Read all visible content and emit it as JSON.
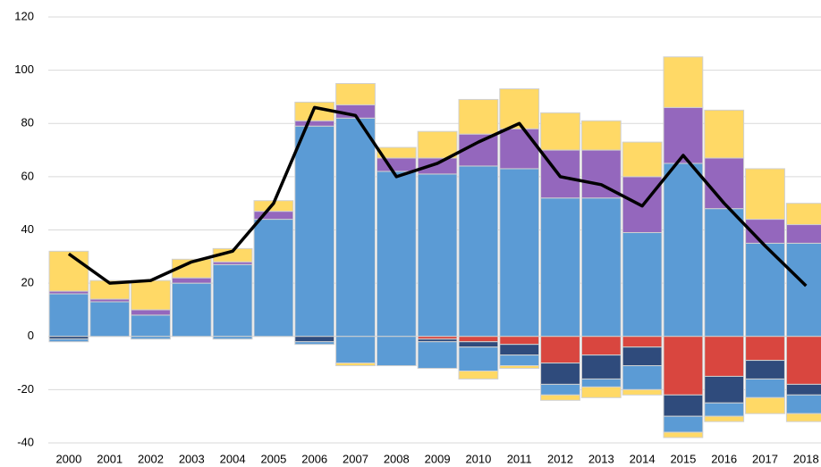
{
  "chart_data": {
    "type": "bar",
    "stacked": true,
    "categories": [
      "2000",
      "2001",
      "2002",
      "2003",
      "2004",
      "2005",
      "2006",
      "2007",
      "2008",
      "2009",
      "2010",
      "2011",
      "2012",
      "2013",
      "2014",
      "2015",
      "2016",
      "2017",
      "2018"
    ],
    "series": [
      {
        "type": "bar",
        "color": "#5b9bd5",
        "values": [
          16,
          13,
          8,
          20,
          27,
          44,
          79,
          82,
          62,
          61,
          64,
          63,
          52,
          52,
          39,
          65,
          48,
          35,
          35
        ]
      },
      {
        "type": "bar",
        "color": "#9467bd",
        "values": [
          1,
          1,
          2,
          2,
          1,
          3,
          2,
          5,
          5,
          6,
          12,
          15,
          18,
          18,
          21,
          21,
          19,
          9,
          7
        ]
      },
      {
        "type": "bar",
        "color": "#ffd966",
        "values": [
          15,
          7,
          11,
          7,
          5,
          4,
          7,
          8,
          4,
          10,
          13,
          15,
          14,
          11,
          13,
          19,
          18,
          19,
          8
        ]
      },
      {
        "type": "bar",
        "color": "#d9463f",
        "values": [
          0,
          0,
          0,
          0,
          0,
          0,
          0,
          0,
          0,
          -1,
          -2,
          -3,
          -10,
          -7,
          -4,
          -22,
          -15,
          -9,
          -18
        ]
      },
      {
        "type": "bar",
        "color": "#2f4b7c",
        "values": [
          -1,
          0,
          0,
          0,
          0,
          0,
          -2,
          0,
          0,
          -1,
          -2,
          -4,
          -8,
          -9,
          -7,
          -8,
          -10,
          -7,
          -4
        ]
      },
      {
        "type": "bar",
        "color": "#5b9bd5",
        "values": [
          -1,
          0,
          -1,
          0,
          -1,
          0,
          -1,
          -10,
          -11,
          -10,
          -9,
          -4,
          -4,
          -3,
          -9,
          -6,
          -5,
          -7,
          -7
        ]
      },
      {
        "type": "bar",
        "color": "#ffd966",
        "values": [
          0,
          0,
          0,
          0,
          0,
          0,
          0,
          -1,
          0,
          0,
          -3,
          -1,
          -2,
          -4,
          -2,
          -2,
          -2,
          -6,
          -3
        ]
      },
      {
        "type": "line",
        "color": "#000000",
        "values": [
          31,
          20,
          21,
          28,
          32,
          50,
          86,
          83,
          60,
          65,
          73,
          80,
          60,
          57,
          49,
          68,
          50,
          34,
          19
        ]
      }
    ],
    "ylim": [
      -40,
      120
    ],
    "yticks": [
      -40,
      -20,
      0,
      20,
      40,
      60,
      80,
      100,
      120
    ],
    "grid": true
  }
}
